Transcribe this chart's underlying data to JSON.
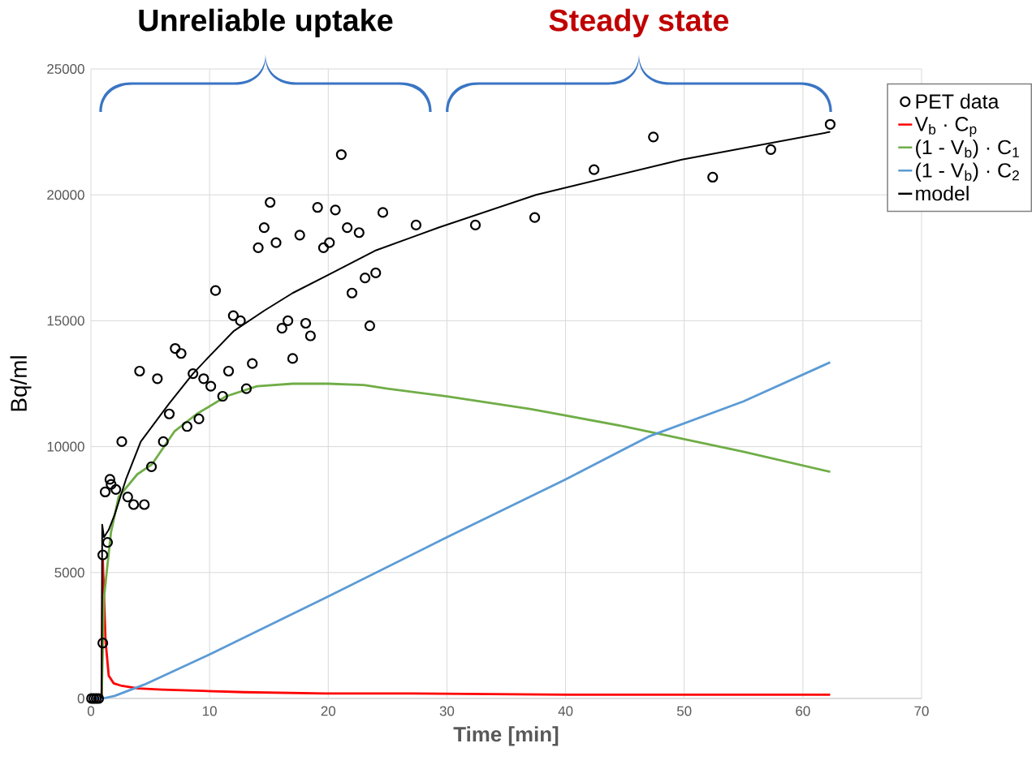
{
  "chart_data": {
    "type": "line",
    "xlabel": "Time [min]",
    "ylabel": "Bq/ml",
    "xlim": [
      0,
      70
    ],
    "xticks": [
      0,
      10,
      20,
      30,
      40,
      50,
      60,
      70
    ],
    "ylim": [
      0,
      25000
    ],
    "yticks": [
      0,
      5000,
      10000,
      15000,
      20000,
      25000
    ],
    "grid": true,
    "legend": "top right",
    "annotations": [
      "Unreliable uptake",
      "Steady state"
    ],
    "series": [
      {
        "name": "PET data",
        "type": "scatter",
        "marker": "circle",
        "color": "#000000",
        "x": [
          0.05,
          0.25,
          0.45,
          0.65,
          1.0,
          1.0,
          1.2,
          1.4,
          1.6,
          1.7,
          2.1,
          2.6,
          3.1,
          3.6,
          4.1,
          4.5,
          5.1,
          5.6,
          6.1,
          6.6,
          7.1,
          7.6,
          8.1,
          8.6,
          9.1,
          9.5,
          10.1,
          10.5,
          11.1,
          11.6,
          12.0,
          12.6,
          13.1,
          13.6,
          14.1,
          14.6,
          15.1,
          15.6,
          16.1,
          16.6,
          17.0,
          17.6,
          18.1,
          18.5,
          19.1,
          19.6,
          20.1,
          20.6,
          21.1,
          21.6,
          22.0,
          22.6,
          23.1,
          23.5,
          24.0,
          24.6,
          27.4,
          32.4,
          37.4,
          42.4,
          47.4,
          52.4,
          57.3,
          62.3
        ],
        "values": [
          0,
          0,
          0,
          0,
          2200,
          5700,
          8200,
          6200,
          8700,
          8500,
          8300,
          10200,
          8000,
          7700,
          13000,
          7700,
          9200,
          12700,
          10200,
          11300,
          13900,
          13700,
          10800,
          12900,
          11100,
          12700,
          12400,
          16200,
          12000,
          13000,
          15200,
          15000,
          12300,
          13300,
          17900,
          18700,
          19700,
          18100,
          14700,
          15000,
          13500,
          18400,
          14900,
          14400,
          19500,
          17900,
          18100,
          19400,
          21600,
          18700,
          16100,
          18500,
          16700,
          14800,
          16900,
          19300,
          18800,
          18800,
          19100,
          21000,
          22300,
          20700,
          21800,
          22800
        ]
      },
      {
        "name": "V$_{b}$ · C$_{p}$",
        "color": "#ff0000",
        "x": [
          0,
          0.9,
          1.0,
          1.23,
          1.5,
          1.92,
          2.6,
          3.97,
          6,
          9.4,
          12.9,
          19.7,
          26.5,
          40.2,
          62.3
        ],
        "values": [
          0,
          0,
          5500,
          2300,
          900,
          600,
          500,
          400,
          350,
          300,
          250,
          200,
          200,
          150,
          150
        ]
      },
      {
        "name": "(1 - V$_{b}$) · C$_{1}$",
        "color": "#70ad47",
        "x": [
          0.9,
          1.1,
          1.37,
          1.69,
          2.33,
          3.9,
          5.15,
          7.03,
          8.92,
          11.4,
          14,
          17,
          20,
          23,
          25,
          30,
          37,
          45,
          50,
          55,
          62.3
        ],
        "values": [
          0,
          4000,
          5200,
          6600,
          8000,
          8900,
          9300,
          10600,
          11300,
          12000,
          12400,
          12500,
          12500,
          12450,
          12300,
          12000,
          11500,
          10800,
          10300,
          9800,
          9000
        ]
      },
      {
        "name": "(1 - V$_{b}$) · C$_{2}$",
        "color": "#5b9bd5",
        "x": [
          0,
          1.0,
          2,
          4.5,
          10,
          20,
          30,
          40,
          47,
          55,
          62.3
        ],
        "values": [
          0,
          0,
          100,
          550,
          1750,
          4050,
          6400,
          8700,
          10400,
          11800,
          13350
        ]
      },
      {
        "name": "model",
        "color": "#000000",
        "x": [
          0.9,
          0.95,
          1.1,
          1.5,
          2.0,
          2.95,
          4.2,
          6.57,
          8.6,
          10.0,
          12.06,
          14.6,
          17.0,
          19.9,
          24.04,
          29.3,
          37.5,
          49.8,
          62.3
        ],
        "values": [
          0,
          6900,
          6400,
          6700,
          7300,
          8700,
          10200,
          11700,
          12900,
          13600,
          14600,
          15400,
          16100,
          16800,
          17800,
          18700,
          20000,
          21400,
          22500
        ]
      }
    ]
  }
}
